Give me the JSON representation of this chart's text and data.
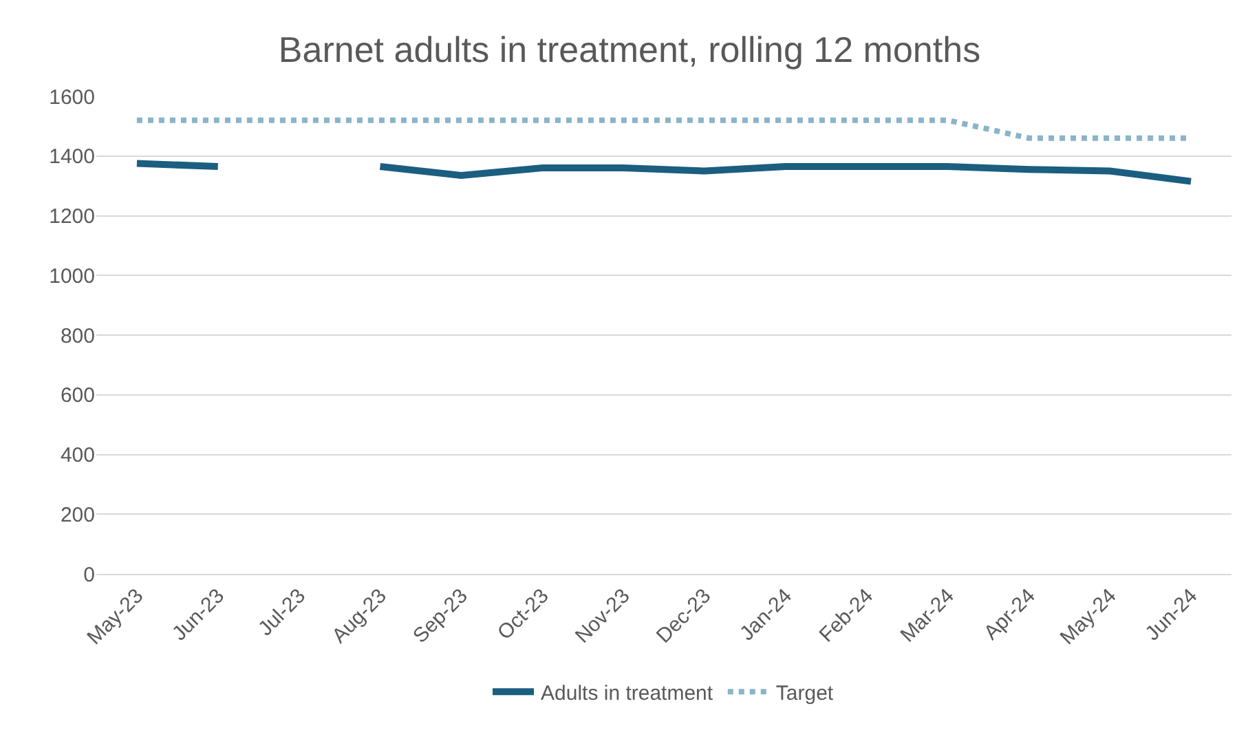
{
  "chart_data": {
    "type": "line",
    "title": "Barnet adults in treatment, rolling 12 months",
    "categories": [
      "May-23",
      "Jun-23",
      "Jul-23",
      "Aug-23",
      "Sep-23",
      "Oct-23",
      "Nov-23",
      "Dec-23",
      "Jan-24",
      "Feb-24",
      "Mar-24",
      "Apr-24",
      "May-24",
      "Jun-24"
    ],
    "series": [
      {
        "name": "Adults in treatment",
        "color": "#1b5e80",
        "line_style": "solid",
        "values": [
          1375,
          1365,
          null,
          1365,
          1335,
          1360,
          1360,
          1350,
          1365,
          1365,
          1365,
          1355,
          1350,
          1315
        ]
      },
      {
        "name": "Target",
        "color": "#8ab4c8",
        "line_style": "dotted",
        "values": [
          1520,
          1520,
          1520,
          1520,
          1520,
          1520,
          1520,
          1520,
          1520,
          1520,
          1520,
          1460,
          1460,
          1460
        ]
      }
    ],
    "ylim": [
      0,
      1600
    ],
    "yticks": [
      0,
      200,
      400,
      600,
      800,
      1000,
      1200,
      1400,
      1600
    ],
    "grid": "y",
    "legend": "bottom",
    "marker": "none"
  }
}
